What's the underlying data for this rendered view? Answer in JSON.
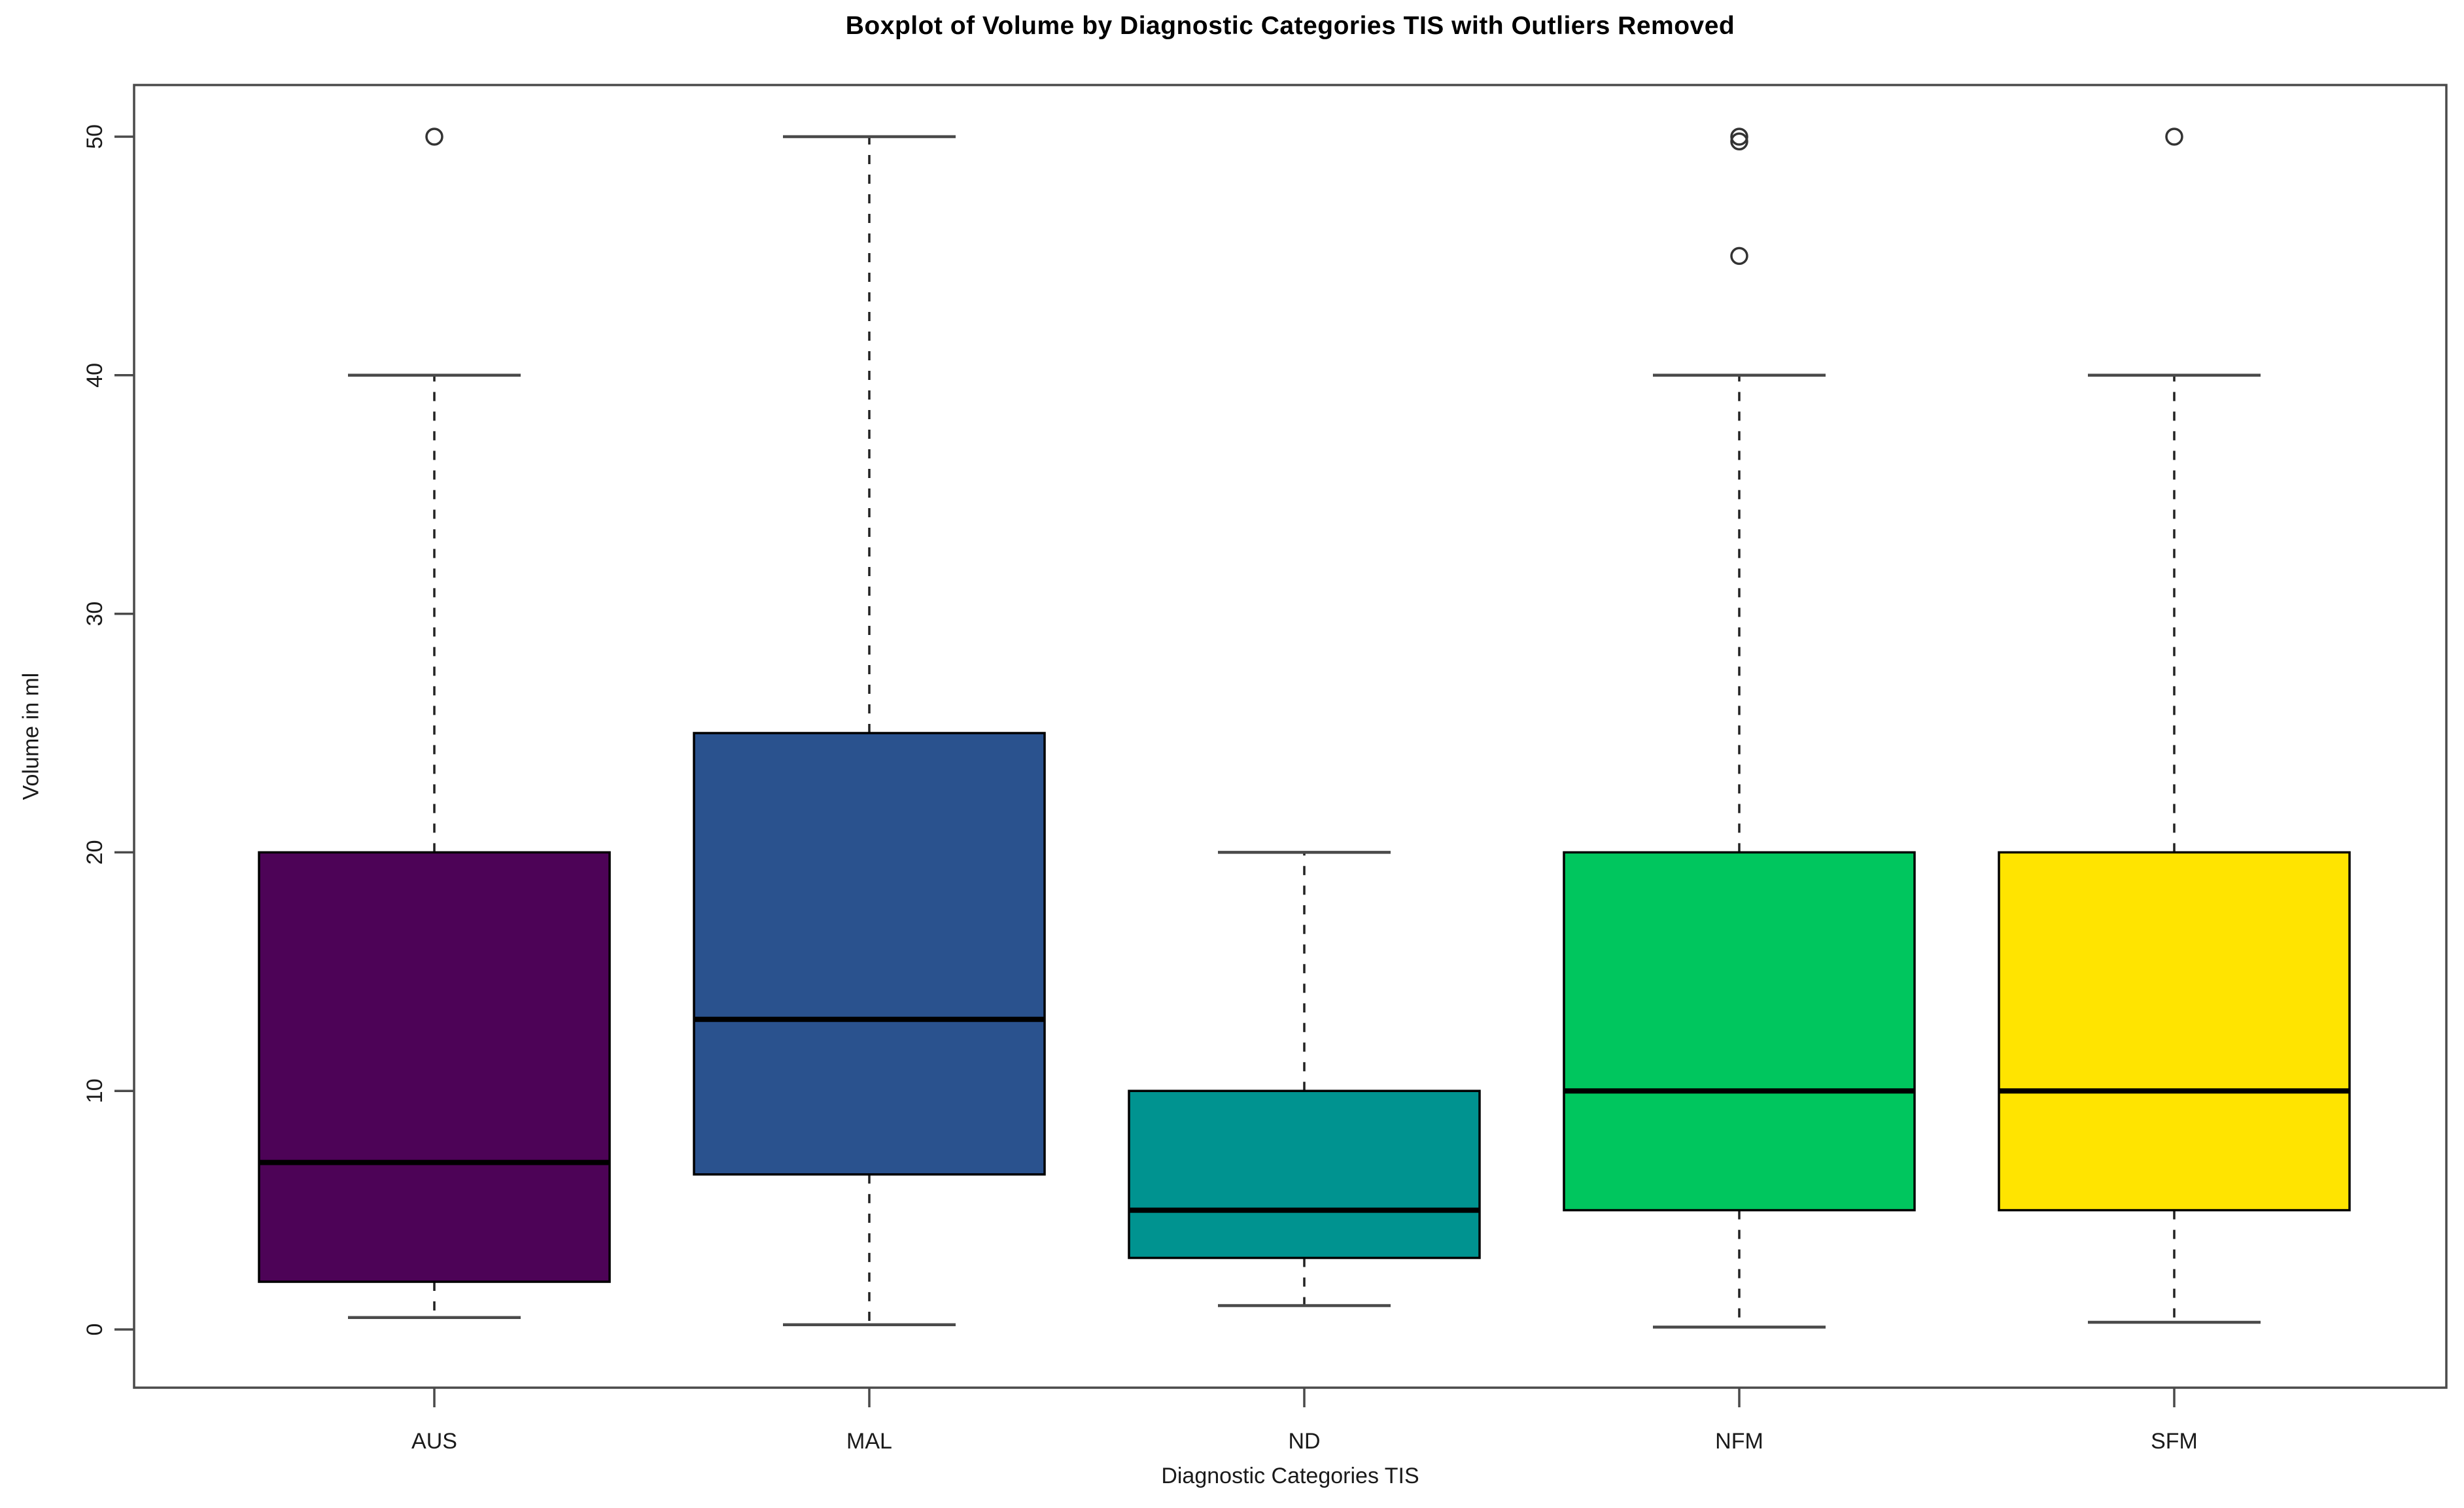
{
  "figure": {
    "background": "#ffffff"
  },
  "chart_data": {
    "type": "boxplot",
    "title": "Boxplot of Volume by Diagnostic Categories TIS with Outliers Removed",
    "xlabel": "Diagnostic Categories TIS",
    "ylabel": "Volume in ml",
    "ylim": [
      0,
      50
    ],
    "yticks": [
      0,
      10,
      20,
      30,
      40,
      50
    ],
    "grid": false,
    "legend": "none",
    "frame": true,
    "axis_color": "#4a4a4a",
    "box_border_color": "#000000",
    "median_color": "#000000",
    "outlier_color": "#333333",
    "tick_label_color": "#1a1a1a",
    "categories": [
      "AUS",
      "MAL",
      "ND",
      "NFM",
      "SFM"
    ],
    "boxes": [
      {
        "category": "AUS",
        "color": "#4D0357",
        "whisker_low": 0.5,
        "q1": 2,
        "median": 7,
        "q3": 20,
        "whisker_high": 40,
        "outliers": [
          50
        ]
      },
      {
        "category": "MAL",
        "color": "#2A528E",
        "whisker_low": 0.2,
        "q1": 6.5,
        "median": 13,
        "q3": 25,
        "whisker_high": 50,
        "outliers": []
      },
      {
        "category": "ND",
        "color": "#009390",
        "whisker_low": 1,
        "q1": 3,
        "median": 5,
        "q3": 10,
        "whisker_high": 20,
        "outliers": []
      },
      {
        "category": "NFM",
        "color": "#00C65E",
        "whisker_low": 0.1,
        "q1": 5,
        "median": 10,
        "q3": 20,
        "whisker_high": 40,
        "outliers": [
          50,
          49.8,
          45
        ]
      },
      {
        "category": "SFM",
        "color": "#FFE400",
        "whisker_low": 0.3,
        "q1": 5,
        "median": 10,
        "q3": 20,
        "whisker_high": 40,
        "outliers": [
          50
        ]
      }
    ]
  }
}
